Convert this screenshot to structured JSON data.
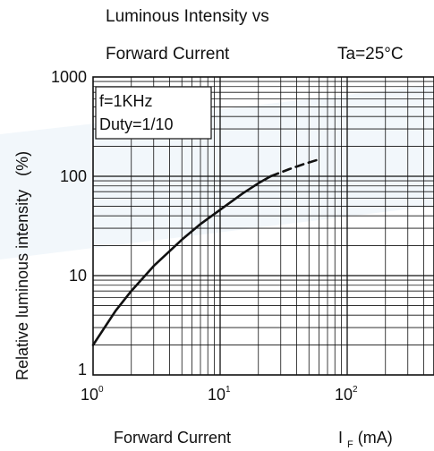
{
  "chart_data": {
    "type": "line",
    "title_line1": "Luminous Intensity vs",
    "title_line2": "Forward Current",
    "condition": "Ta=25°C",
    "ylabel": "Relative luminous intensity",
    "ylabel_unit": "(%)",
    "xlabel": "Forward Current",
    "xunit_symbol": "I",
    "xunit_sub": "F",
    "xunit_tail": "(mA)",
    "legend_lines": [
      "f=1KHz",
      "Duty=1/10"
    ],
    "x_scale": "log",
    "y_scale": "log",
    "xlim": [
      1,
      200
    ],
    "ylim": [
      1,
      1000
    ],
    "x_ticks": [
      {
        "base": "10",
        "exp": "0",
        "value": 1
      },
      {
        "base": "10",
        "exp": "1",
        "value": 10
      },
      {
        "base": "10",
        "exp": "2",
        "value": 100
      }
    ],
    "y_ticks": [
      {
        "label": "1",
        "value": 1
      },
      {
        "label": "10",
        "value": 10
      },
      {
        "label": "100",
        "value": 100
      },
      {
        "label": "1000",
        "value": 1000
      }
    ],
    "grid": true,
    "series": [
      {
        "style": "solid",
        "x": [
          1,
          1.5,
          2,
          3,
          5,
          7,
          10,
          15,
          20,
          25
        ],
        "y": [
          2,
          4.4,
          7,
          12.5,
          23,
          33,
          46,
          67,
          85,
          100
        ]
      },
      {
        "style": "dashed",
        "x": [
          25,
          35,
          45,
          60
        ],
        "y": [
          100,
          118,
          132,
          148
        ]
      }
    ]
  }
}
